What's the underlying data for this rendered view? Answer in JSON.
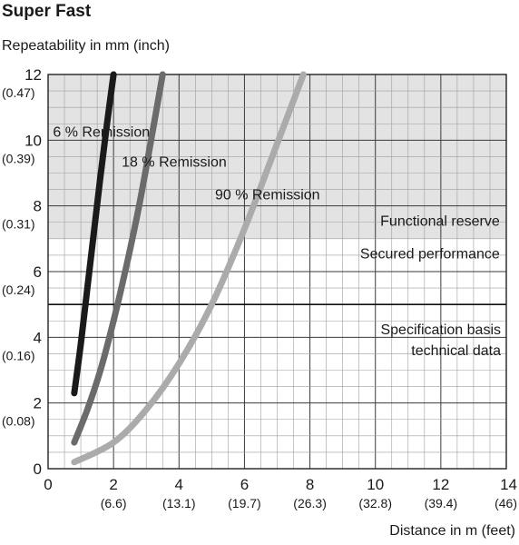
{
  "title": "Super Fast",
  "chart_data": {
    "type": "line",
    "title": "Super Fast",
    "ylabel": "Repeatability in mm (inch)",
    "xlabel": "Distance in m (feet)",
    "xlim": [
      0,
      14
    ],
    "ylim": [
      0,
      12
    ],
    "grid": true,
    "x_ticks": [
      {
        "value": 0,
        "label": "0",
        "sub": ""
      },
      {
        "value": 2,
        "label": "2",
        "sub": "(6.6)"
      },
      {
        "value": 4,
        "label": "4",
        "sub": "(13.1)"
      },
      {
        "value": 6,
        "label": "6",
        "sub": "(19.7)"
      },
      {
        "value": 8,
        "label": "8",
        "sub": "(26.3)"
      },
      {
        "value": 10,
        "label": "10",
        "sub": "(32.8)"
      },
      {
        "value": 12,
        "label": "12",
        "sub": "(39.4)"
      },
      {
        "value": 14,
        "label": "14",
        "sub": "(46)"
      }
    ],
    "y_ticks": [
      {
        "value": 0,
        "label": "0",
        "sub": ""
      },
      {
        "value": 2,
        "label": "2",
        "sub": "(0.08)"
      },
      {
        "value": 4,
        "label": "4",
        "sub": "(0.16)"
      },
      {
        "value": 6,
        "label": "6",
        "sub": "(0.24)"
      },
      {
        "value": 8,
        "label": "8",
        "sub": "(0.31)"
      },
      {
        "value": 10,
        "label": "10",
        "sub": "(0.39)"
      },
      {
        "value": 12,
        "label": "12",
        "sub": "(0.47)"
      }
    ],
    "regions": [
      {
        "name": "Functional reserve",
        "y_from": 7,
        "y_to": 12,
        "color": "#e3e3e3"
      }
    ],
    "reference_lines": [
      {
        "y": 5,
        "labels": [
          "Specification basis",
          "technical data"
        ]
      }
    ],
    "annotations": [
      {
        "text": "Functional reserve",
        "x": 13.8,
        "y": 7.4
      },
      {
        "text": "Secured performance",
        "x": 13.8,
        "y": 6.4
      }
    ],
    "series": [
      {
        "name": "6 % Remission",
        "color": "#1a1a1a",
        "x": [
          0.8,
          1.0,
          1.2,
          1.4,
          1.6,
          1.8,
          2.0
        ],
        "y": [
          2.3,
          3.8,
          5.5,
          7.2,
          8.9,
          10.5,
          12.0
        ],
        "label_at": [
          0.15,
          10.1
        ]
      },
      {
        "name": "18 % Remission",
        "color": "#6b6b6b",
        "x": [
          0.8,
          1.2,
          1.6,
          2.0,
          2.4,
          2.8,
          3.2,
          3.5
        ],
        "y": [
          0.8,
          1.8,
          3.0,
          4.5,
          6.2,
          8.1,
          10.3,
          12.0
        ],
        "label_at": [
          2.25,
          9.2
        ]
      },
      {
        "name": "90 % Remission",
        "color": "#ababab",
        "x": [
          0.8,
          2.0,
          3.0,
          4.0,
          5.0,
          6.0,
          7.0,
          7.8
        ],
        "y": [
          0.2,
          0.8,
          1.8,
          3.2,
          5.0,
          7.3,
          9.9,
          12.0
        ],
        "label_at": [
          5.1,
          8.2
        ]
      }
    ]
  }
}
